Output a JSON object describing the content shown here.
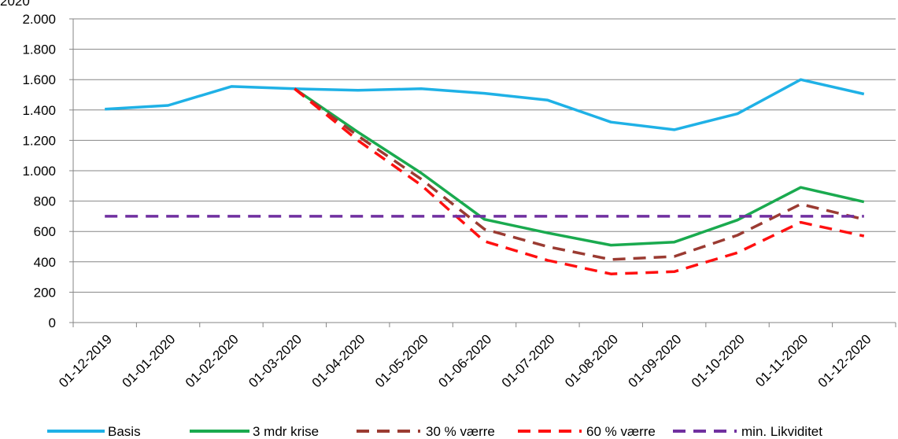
{
  "chart_data": {
    "type": "line",
    "title": "",
    "top_label": "2020",
    "xlabel": "",
    "ylabel": "",
    "ylim": [
      0,
      2000
    ],
    "y_ticks": [
      0,
      200,
      400,
      600,
      800,
      1000,
      1200,
      1400,
      1600,
      1800,
      2000
    ],
    "y_tick_labels": [
      "0",
      "200",
      "400",
      "600",
      "800",
      "1.000",
      "1.200",
      "1.400",
      "1.600",
      "1.800",
      "2.000"
    ],
    "grid": "horizontal",
    "legend_position": "bottom",
    "categories": [
      "01-12-2019",
      "01-01-2020",
      "01-02-2020",
      "01-03-2020",
      "01-04-2020",
      "01-05-2020",
      "01-06-2020",
      "01-07-2020",
      "01-08-2020",
      "01-09-2020",
      "01-10-2020",
      "01-11-2020",
      "01-12-2020"
    ],
    "series": [
      {
        "name": "Basis",
        "color": "#1FB1E6",
        "dash": "solid",
        "values": [
          1405,
          1430,
          1555,
          1540,
          1530,
          1540,
          1510,
          1465,
          1320,
          1270,
          1375,
          1600,
          1505
        ]
      },
      {
        "name": "3 mdr krise",
        "color": "#1AAA4F",
        "dash": "solid",
        "values": [
          null,
          null,
          null,
          1540,
          1255,
          985,
          680,
          590,
          510,
          530,
          675,
          890,
          795
        ]
      },
      {
        "name": "30 % værre",
        "color": "#9B3B32",
        "dash": "dashed",
        "values": [
          null,
          null,
          null,
          1540,
          1230,
          945,
          615,
          500,
          415,
          435,
          575,
          780,
          680
        ]
      },
      {
        "name": "60 % værre",
        "color": "#FF1010",
        "dash": "dashed",
        "values": [
          null,
          null,
          null,
          1540,
          1200,
          905,
          535,
          410,
          320,
          335,
          460,
          660,
          570
        ]
      },
      {
        "name": "min. Likviditet",
        "color": "#7030A0",
        "dash": "dashed",
        "values": [
          700,
          700,
          700,
          700,
          700,
          700,
          700,
          700,
          700,
          700,
          700,
          700,
          700
        ]
      }
    ]
  }
}
